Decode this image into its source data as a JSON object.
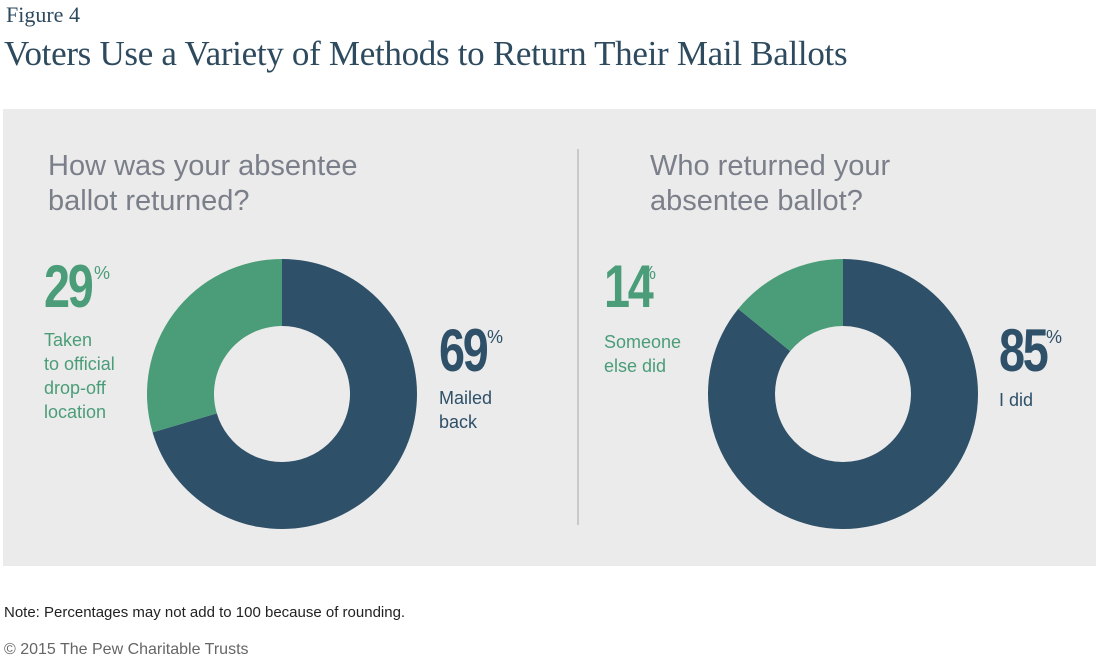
{
  "figure_label": "Figure 4",
  "title": "Voters Use a Variety of Methods to Return Their Mail Ballots",
  "colors": {
    "green": "#4a9d78",
    "navy": "#2e5068",
    "panel_bg": "#ebebeb",
    "question_text": "#7b7f8a"
  },
  "chart_data": [
    {
      "type": "pie",
      "donut": true,
      "title": "How was your absentee\nballot returned?",
      "slices": [
        {
          "label": "Mailed\nback",
          "value": 69,
          "display": "69",
          "color": "#2e5068"
        },
        {
          "label": "Taken\nto official\ndrop-off\nlocation",
          "value": 29,
          "display": "29",
          "color": "#4a9d78"
        }
      ]
    },
    {
      "type": "pie",
      "donut": true,
      "title": "Who returned your\nabsentee ballot?",
      "slices": [
        {
          "label": "I did",
          "value": 85,
          "display": "85",
          "color": "#2e5068"
        },
        {
          "label": "Someone\nelse did",
          "value": 14,
          "display": "14",
          "color": "#4a9d78"
        }
      ]
    }
  ],
  "percent_sign": "%",
  "note": "Note: Percentages may not add to 100 because of rounding.",
  "copyright": "© 2015 The Pew Charitable Trusts"
}
